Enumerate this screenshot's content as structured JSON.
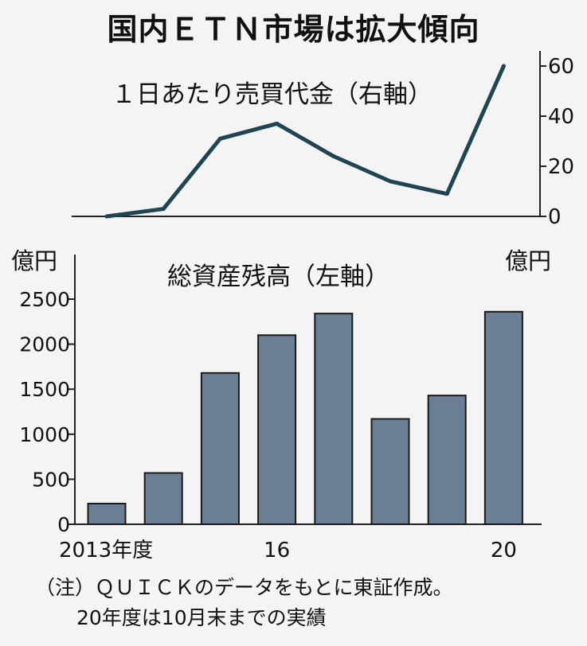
{
  "title": "国内ＥＴＮ市場は拡大傾向",
  "notes": [
    "（注）ＱＵＩＣＫのデータをもとに東証作成。",
    "20年度は10月末までの実績"
  ],
  "colors": {
    "line": "#1f4452",
    "bar_fill": "#6b7f94",
    "bar_stroke": "#1a1a1a",
    "axis": "#222222",
    "background": "#f4f4f4"
  },
  "chart_data": [
    {
      "type": "line",
      "title": "１日あたり売買代金（右軸）",
      "x": [
        "2013",
        "2014",
        "2015",
        "2016",
        "2017",
        "2018",
        "2019",
        "2020"
      ],
      "values": [
        0,
        3,
        31,
        37,
        24,
        14,
        9,
        60
      ],
      "ylim": [
        0,
        60
      ],
      "yticks": [
        "0",
        "20",
        "40",
        "60"
      ],
      "axis_side": "right",
      "grid": false
    },
    {
      "type": "bar",
      "title": "総資産残高（左軸）",
      "categories": [
        "2013",
        "2014",
        "2015",
        "2016",
        "2017",
        "2018",
        "2019",
        "2020"
      ],
      "xtick_labels": [
        "2013年度",
        "",
        "",
        "16",
        "",
        "",
        "",
        "20"
      ],
      "values": [
        230,
        570,
        1680,
        2100,
        2340,
        1170,
        1430,
        2360
      ],
      "ylim": [
        0,
        2500
      ],
      "yticks": [
        "0",
        "500",
        "1000",
        "1500",
        "2000",
        "2500"
      ],
      "ylabel_left": "億円",
      "ylabel_right": "億円",
      "axis_side": "left",
      "grid": false
    }
  ]
}
